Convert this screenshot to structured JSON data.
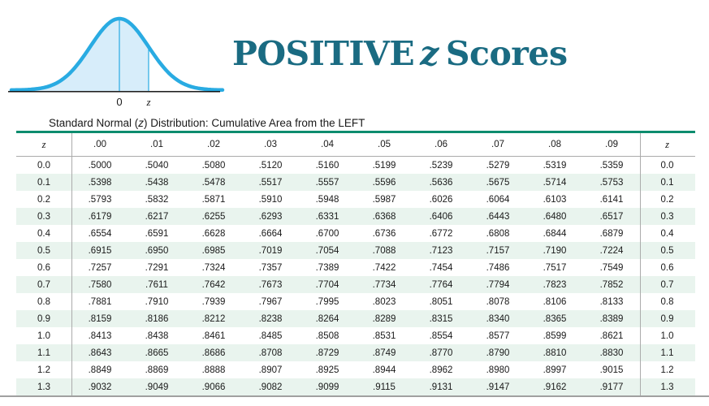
{
  "page": {
    "title_word1": "POSITIVE",
    "title_word2": "z",
    "title_word3": "Scores",
    "subtitle_part1": "Standard Normal (",
    "subtitle_z": "z",
    "subtitle_part2": ") Distribution: Cumulative Area from the LEFT"
  },
  "diagram": {
    "axis_label_zero": "0",
    "axis_label_z": "z"
  },
  "table": {
    "col_headers": [
      "z",
      ".00",
      ".01",
      ".02",
      ".03",
      ".04",
      ".05",
      ".06",
      ".07",
      ".08",
      ".09",
      "z"
    ],
    "rows": [
      {
        "z": "0.0",
        "values": [
          ".5000",
          ".5040",
          ".5080",
          ".5120",
          ".5160",
          ".5199",
          ".5239",
          ".5279",
          ".5319",
          ".5359"
        ]
      },
      {
        "z": "0.1",
        "values": [
          ".5398",
          ".5438",
          ".5478",
          ".5517",
          ".5557",
          ".5596",
          ".5636",
          ".5675",
          ".5714",
          ".5753"
        ]
      },
      {
        "z": "0.2",
        "values": [
          ".5793",
          ".5832",
          ".5871",
          ".5910",
          ".5948",
          ".5987",
          ".6026",
          ".6064",
          ".6103",
          ".6141"
        ]
      },
      {
        "z": "0.3",
        "values": [
          ".6179",
          ".6217",
          ".6255",
          ".6293",
          ".6331",
          ".6368",
          ".6406",
          ".6443",
          ".6480",
          ".6517"
        ]
      },
      {
        "z": "0.4",
        "values": [
          ".6554",
          ".6591",
          ".6628",
          ".6664",
          ".6700",
          ".6736",
          ".6772",
          ".6808",
          ".6844",
          ".6879"
        ]
      },
      {
        "z": "0.5",
        "values": [
          ".6915",
          ".6950",
          ".6985",
          ".7019",
          ".7054",
          ".7088",
          ".7123",
          ".7157",
          ".7190",
          ".7224"
        ]
      },
      {
        "z": "0.6",
        "values": [
          ".7257",
          ".7291",
          ".7324",
          ".7357",
          ".7389",
          ".7422",
          ".7454",
          ".7486",
          ".7517",
          ".7549"
        ]
      },
      {
        "z": "0.7",
        "values": [
          ".7580",
          ".7611",
          ".7642",
          ".7673",
          ".7704",
          ".7734",
          ".7764",
          ".7794",
          ".7823",
          ".7852"
        ]
      },
      {
        "z": "0.8",
        "values": [
          ".7881",
          ".7910",
          ".7939",
          ".7967",
          ".7995",
          ".8023",
          ".8051",
          ".8078",
          ".8106",
          ".8133"
        ]
      },
      {
        "z": "0.9",
        "values": [
          ".8159",
          ".8186",
          ".8212",
          ".8238",
          ".8264",
          ".8289",
          ".8315",
          ".8340",
          ".8365",
          ".8389"
        ]
      },
      {
        "z": "1.0",
        "values": [
          ".8413",
          ".8438",
          ".8461",
          ".8485",
          ".8508",
          ".8531",
          ".8554",
          ".8577",
          ".8599",
          ".8621"
        ]
      },
      {
        "z": "1.1",
        "values": [
          ".8643",
          ".8665",
          ".8686",
          ".8708",
          ".8729",
          ".8749",
          ".8770",
          ".8790",
          ".8810",
          ".8830"
        ]
      },
      {
        "z": "1.2",
        "values": [
          ".8849",
          ".8869",
          ".8888",
          ".8907",
          ".8925",
          ".8944",
          ".8962",
          ".8980",
          ".8997",
          ".9015"
        ]
      },
      {
        "z": "1.3",
        "values": [
          ".9032",
          ".9049",
          ".9066",
          ".9082",
          ".9099",
          ".9115",
          ".9131",
          ".9147",
          ".9162",
          ".9177"
        ]
      }
    ]
  },
  "colors": {
    "title-teal": "#1A6B82",
    "rule-teal": "#0D8C6E",
    "row-green": "#E9F4EE",
    "curve-blue": "#29ABE2",
    "curve-fill": "#D7EDFA",
    "line-gray": "#ABABAB",
    "bottom-gray": "#A0A0A0",
    "text-dark": "#1A1A1A"
  }
}
